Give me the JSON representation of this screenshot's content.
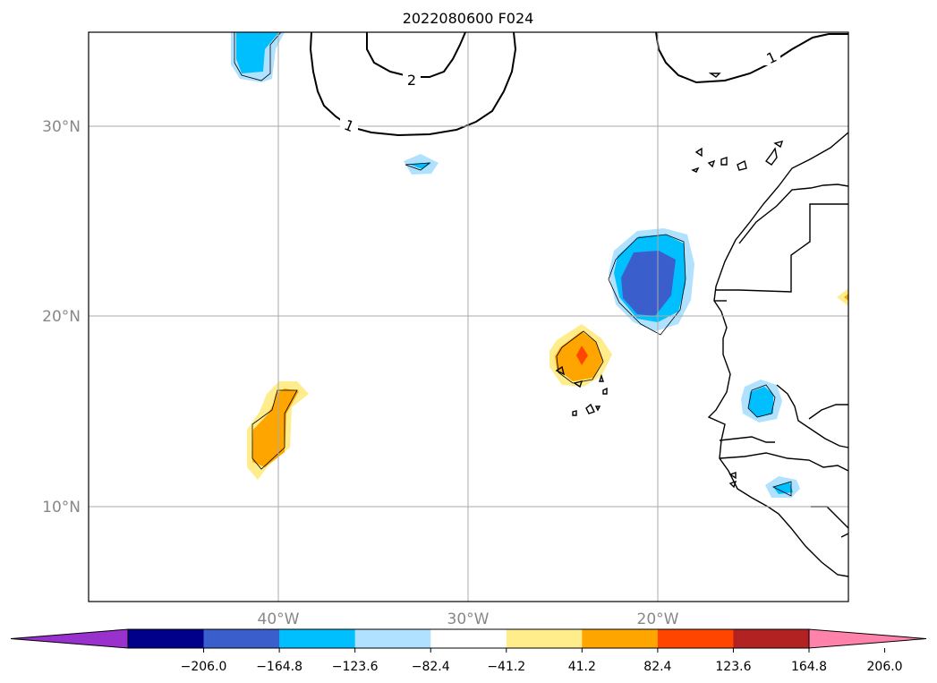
{
  "title": "2022080600 F024",
  "map": {
    "lat_labels": [
      "30°N",
      "20°N",
      "10°N"
    ],
    "lon_labels": [
      "40°W",
      "30°W",
      "20°W"
    ],
    "contour_labels": [
      "2",
      "1",
      "1"
    ]
  },
  "colorbar": {
    "colors": [
      "#9932cc",
      "#00008b",
      "#3a5fcd",
      "#00bfff",
      "#b0e2ff",
      "#ffffff",
      "#ffec8b",
      "#ffa500",
      "#ff4500",
      "#b22222",
      "#ff82ab"
    ],
    "tick_labels": [
      "−206.0",
      "−164.8",
      "−123.6",
      "−82.4",
      "−41.2",
      "41.2",
      "82.4",
      "123.6",
      "164.8",
      "206.0"
    ]
  }
}
